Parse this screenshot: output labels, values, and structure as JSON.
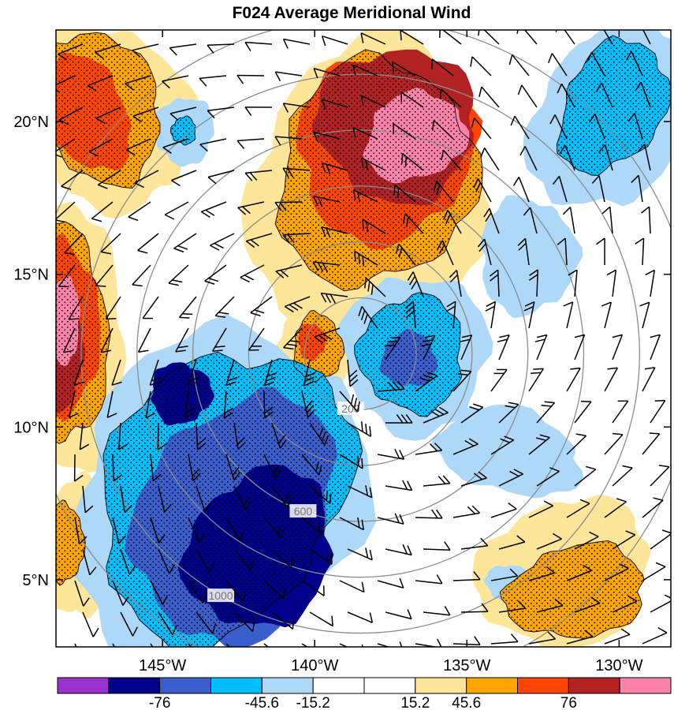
{
  "chart_data": {
    "type": "heatmap",
    "title": "F024 Average Meridional Wind",
    "plot_style": "filled contour map with stippling, wind barbs and radial-distance rings",
    "x_axis": {
      "ticks": [
        -145,
        -140,
        -135,
        -130
      ],
      "tick_labels": [
        "145°W",
        "140°W",
        "135°W",
        "130°W"
      ],
      "range": [
        -148.5,
        -128.3
      ]
    },
    "y_axis": {
      "ticks": [
        5,
        10,
        15,
        20
      ],
      "tick_labels": [
        "5°N",
        "10°N",
        "15°N",
        "20°N"
      ],
      "range": [
        2.8,
        23
      ]
    },
    "storm_center": {
      "lon": -138.5,
      "lat": 12.4
    },
    "radius_rings": {
      "values_km": [
        200,
        400,
        600,
        800,
        1000,
        1200
      ],
      "labels": [
        {
          "text": "200",
          "ring_km": 200
        },
        {
          "text": "600",
          "ring_km": 600
        },
        {
          "text": "1000",
          "ring_km": 1000
        }
      ]
    },
    "colorbar": {
      "labels": [
        "-76",
        "-45.6",
        "-15.2",
        "15.2",
        "45.6",
        "76"
      ],
      "colors": [
        "#9a32cd",
        "#00008b",
        "#3a5fcd",
        "#00bfff",
        "#add8f7",
        "#ffffff",
        "#ffffff",
        "#fde69a",
        "#ffa500",
        "#ff4500",
        "#b22222",
        "#ff82ab"
      ]
    },
    "regions": [
      {
        "sign": "positive",
        "level": 1,
        "center": [
          -138.2,
          17.8
        ],
        "radius": [
          3.9,
          4.9
        ],
        "rotation_deg": 12
      },
      {
        "sign": "positive",
        "level": 2,
        "center": [
          -138.0,
          18.3
        ],
        "radius": [
          3.2,
          3.7
        ],
        "rotation_deg": 15
      },
      {
        "sign": "positive",
        "level": 3,
        "center": [
          -137.7,
          19.1
        ],
        "radius": [
          2.9,
          3.0
        ],
        "rotation_deg": 15
      },
      {
        "sign": "positive",
        "level": 4,
        "center": [
          -137.3,
          19.9
        ],
        "radius": [
          2.6,
          2.5
        ],
        "rotation_deg": 15
      },
      {
        "sign": "positive",
        "level": 5,
        "center": [
          -136.7,
          19.5
        ],
        "radius": [
          1.7,
          1.4
        ],
        "rotation_deg": -25
      },
      {
        "sign": "positive",
        "level": 1,
        "center": [
          -146.8,
          20.2
        ],
        "radius": [
          2.6,
          3.2
        ],
        "rotation_deg": -30
      },
      {
        "sign": "positive",
        "level": 2,
        "center": [
          -147.2,
          20.5
        ],
        "radius": [
          2.0,
          2.6
        ],
        "rotation_deg": -30
      },
      {
        "sign": "positive",
        "level": 3,
        "center": [
          -147.6,
          20.3
        ],
        "radius": [
          1.4,
          2.0
        ],
        "rotation_deg": -30
      },
      {
        "sign": "positive",
        "level": 1,
        "center": [
          -148.3,
          12.8
        ],
        "radius": [
          2.1,
          4.3
        ],
        "rotation_deg": 0
      },
      {
        "sign": "positive",
        "level": 2,
        "center": [
          -148.4,
          13.0
        ],
        "radius": [
          1.6,
          3.6
        ],
        "rotation_deg": 0
      },
      {
        "sign": "positive",
        "level": 3,
        "center": [
          -148.4,
          13.2
        ],
        "radius": [
          1.3,
          3.0
        ],
        "rotation_deg": 0
      },
      {
        "sign": "positive",
        "level": 4,
        "center": [
          -148.5,
          12.3
        ],
        "radius": [
          0.9,
          1.8
        ],
        "rotation_deg": 0
      },
      {
        "sign": "positive",
        "level": 5,
        "center": [
          -148.3,
          13.5
        ],
        "radius": [
          0.6,
          1.4
        ],
        "rotation_deg": 0
      },
      {
        "sign": "positive",
        "level": 1,
        "center": [
          -140.0,
          12.6
        ],
        "radius": [
          1.2,
          1.6
        ],
        "rotation_deg": 0
      },
      {
        "sign": "positive",
        "level": 2,
        "center": [
          -139.9,
          12.6
        ],
        "radius": [
          0.8,
          1.1
        ],
        "rotation_deg": 0
      },
      {
        "sign": "positive",
        "level": 3,
        "center": [
          -140.1,
          12.8
        ],
        "radius": [
          0.45,
          0.6
        ],
        "rotation_deg": 0
      },
      {
        "sign": "positive",
        "level": 1,
        "center": [
          -131.8,
          5.2
        ],
        "radius": [
          2.9,
          2.4
        ],
        "rotation_deg": -20
      },
      {
        "sign": "positive",
        "level": 2,
        "center": [
          -131.4,
          4.6
        ],
        "radius": [
          2.3,
          1.5
        ],
        "rotation_deg": -10
      },
      {
        "sign": "positive",
        "level": 1,
        "center": [
          -147.7,
          6.0
        ],
        "radius": [
          1.2,
          2.3
        ],
        "rotation_deg": 0
      },
      {
        "sign": "positive",
        "level": 2,
        "center": [
          -148.2,
          6.2
        ],
        "radius": [
          0.6,
          1.3
        ],
        "rotation_deg": 0
      },
      {
        "sign": "negative",
        "level": 1,
        "center": [
          -143.2,
          7.8
        ],
        "radius": [
          4.6,
          5.6
        ],
        "rotation_deg": 28
      },
      {
        "sign": "negative",
        "level": 2,
        "center": [
          -143.0,
          7.8
        ],
        "radius": [
          3.8,
          5.0
        ],
        "rotation_deg": 28
      },
      {
        "sign": "negative",
        "level": 3,
        "center": [
          -142.6,
          7.0
        ],
        "radius": [
          3.1,
          4.2
        ],
        "rotation_deg": 22
      },
      {
        "sign": "negative",
        "level": 4,
        "center": [
          -141.8,
          6.0
        ],
        "radius": [
          2.3,
          2.7
        ],
        "rotation_deg": 30
      },
      {
        "sign": "negative",
        "level": 4,
        "center": [
          -144.4,
          11.1
        ],
        "radius": [
          1.0,
          1.0
        ],
        "rotation_deg": 0
      },
      {
        "sign": "negative",
        "level": 1,
        "center": [
          -136.7,
          12.4
        ],
        "radius": [
          2.4,
          2.6
        ],
        "rotation_deg": 0
      },
      {
        "sign": "negative",
        "level": 2,
        "center": [
          -136.8,
          12.4
        ],
        "radius": [
          1.7,
          1.9
        ],
        "rotation_deg": 0
      },
      {
        "sign": "negative",
        "level": 3,
        "center": [
          -136.9,
          12.2
        ],
        "radius": [
          0.9,
          0.9
        ],
        "rotation_deg": 0
      },
      {
        "sign": "negative",
        "level": 1,
        "center": [
          -130.3,
          20.2
        ],
        "radius": [
          2.4,
          3.3
        ],
        "rotation_deg": 28
      },
      {
        "sign": "negative",
        "level": 2,
        "center": [
          -130.2,
          20.5
        ],
        "radius": [
          1.6,
          2.3
        ],
        "rotation_deg": 28
      },
      {
        "sign": "negative",
        "level": 1,
        "center": [
          -144.3,
          19.7
        ],
        "radius": [
          1.0,
          1.1
        ],
        "rotation_deg": 0
      },
      {
        "sign": "negative",
        "level": 2,
        "center": [
          -144.3,
          19.7
        ],
        "radius": [
          0.4,
          0.45
        ],
        "rotation_deg": 0
      },
      {
        "sign": "negative",
        "level": 1,
        "center": [
          -133.6,
          9.2
        ],
        "radius": [
          2.4,
          1.4
        ],
        "rotation_deg": 15
      },
      {
        "sign": "negative",
        "level": 1,
        "center": [
          -133.0,
          15.6
        ],
        "radius": [
          1.6,
          1.9
        ],
        "rotation_deg": 0
      },
      {
        "sign": "negative",
        "level": 1,
        "center": [
          -133.6,
          4.9
        ],
        "radius": [
          0.8,
          0.6
        ],
        "rotation_deg": 0
      }
    ]
  }
}
